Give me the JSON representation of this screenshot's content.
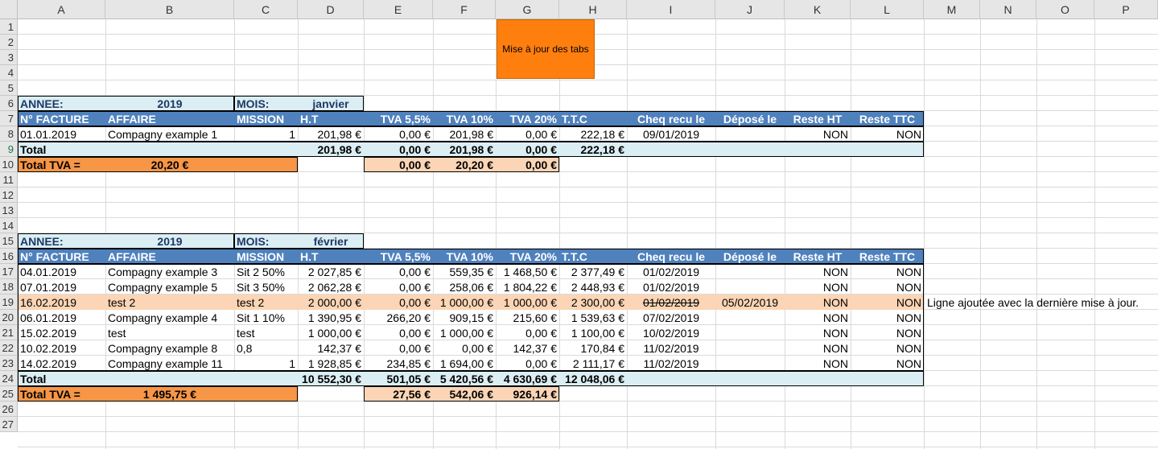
{
  "columns": [
    "A",
    "B",
    "C",
    "D",
    "E",
    "F",
    "G",
    "H",
    "I",
    "J",
    "K",
    "L",
    "M",
    "N",
    "O",
    "P"
  ],
  "rows": [
    "1",
    "2",
    "3",
    "4",
    "5",
    "6",
    "7",
    "8",
    "9",
    "10",
    "11",
    "12",
    "13",
    "14",
    "15",
    "16",
    "17",
    "18",
    "19",
    "20",
    "21",
    "22",
    "23",
    "24",
    "25",
    "26",
    "27"
  ],
  "button": {
    "label": "Mise à jour des tabs"
  },
  "colors": {
    "header_band": "#4f81bd",
    "year_band": "#dbeef4",
    "orange": "#f79646",
    "light_orange": "#fbd5b5",
    "button": "#ff7f0e"
  },
  "jan": {
    "annee_label": "ANNEE:",
    "annee": "2019",
    "mois_label": "MOIS:",
    "mois": "janvier",
    "headers": [
      "N° FACTURE",
      "AFFAIRE",
      "MISSION",
      "H.T",
      "TVA 5,5%",
      "TVA 10%",
      "TVA 20%",
      "T.T.C",
      "Cheq recu le",
      "Déposé le",
      "Reste HT",
      "Reste TTC"
    ],
    "rows": [
      [
        "01.01.2019",
        "Compagny example 1",
        "1",
        "201,98 €",
        "0,00 €",
        "201,98 €",
        "0,00 €",
        "222,18 €",
        "09/01/2019",
        "",
        "NON",
        "NON"
      ]
    ],
    "total_label": "Total",
    "total_ht": "201,98 €",
    "total_tva55": "0,00 €",
    "total_tva10": "201,98 €",
    "total_tva20": "0,00 €",
    "total_ttc": "222,18 €",
    "tva_label": "Total TVA  =",
    "tva_total": "20,20 €",
    "tva55": "0,00 €",
    "tva10": "20,20 €",
    "tva20": "0,00 €"
  },
  "feb": {
    "annee_label": "ANNEE:",
    "annee": "2019",
    "mois_label": "MOIS:",
    "mois": "février",
    "headers": [
      "N° FACTURE",
      "AFFAIRE",
      "MISSION",
      "H.T",
      "TVA 5,5%",
      "TVA 10%",
      "TVA 20%",
      "T.T.C",
      "Cheq recu le",
      "Déposé le",
      "Reste HT",
      "Reste TTC"
    ],
    "rows": [
      [
        "04.01.2019",
        "Compagny example 3",
        "Sit 2  50%",
        "2 027,85 €",
        "0,00 €",
        "559,35 €",
        "1 468,50 €",
        "2 377,49 €",
        "01/02/2019",
        "",
        "NON",
        "NON"
      ],
      [
        "07.01.2019",
        "Compagny example 5",
        "Sit 3  50%",
        "2 062,28 €",
        "0,00 €",
        "258,06 €",
        "1 804,22 €",
        "2 448,93 €",
        "01/02/2019",
        "",
        "NON",
        "NON"
      ],
      [
        "16.02.2019",
        "test 2",
        "test 2",
        "2 000,00 €",
        "0,00 €",
        "1 000,00 €",
        "1 000,00 €",
        "2 300,00 €",
        "01/02/2019",
        "05/02/2019",
        "NON",
        "NON"
      ],
      [
        "06.01.2019",
        "Compagny example 4",
        "Sit 1  10%",
        "1 390,95 €",
        "266,20 €",
        "909,15 €",
        "215,60 €",
        "1 539,63 €",
        "07/02/2019",
        "",
        "NON",
        "NON"
      ],
      [
        "15.02.2019",
        "test",
        "test",
        "1 000,00 €",
        "0,00 €",
        "1 000,00 €",
        "0,00 €",
        "1 100,00 €",
        "10/02/2019",
        "",
        "NON",
        "NON"
      ],
      [
        "10.02.2019",
        "Compagny example 8",
        "0,8",
        "142,37 €",
        "0,00 €",
        "0,00 €",
        "142,37 €",
        "170,84 €",
        "11/02/2019",
        "",
        "NON",
        "NON"
      ],
      [
        "14.02.2019",
        "Compagny example 11",
        "1",
        "1 928,85 €",
        "234,85 €",
        "1 694,00 €",
        "0,00 €",
        "2 111,17 €",
        "11/02/2019",
        "",
        "NON",
        "NON"
      ]
    ],
    "note": "Ligne ajoutée avec la dernière mise à jour.",
    "total_label": "Total",
    "total_ht": "10 552,30 €",
    "total_tva55": "501,05 €",
    "total_tva10": "5 420,56 €",
    "total_tva20": "4 630,69 €",
    "total_ttc": "12 048,06 €",
    "tva_label": "Total TVA  =",
    "tva_total": "1 495,75 €",
    "tva55": "27,56 €",
    "tva10": "542,06 €",
    "tva20": "926,14 €"
  }
}
